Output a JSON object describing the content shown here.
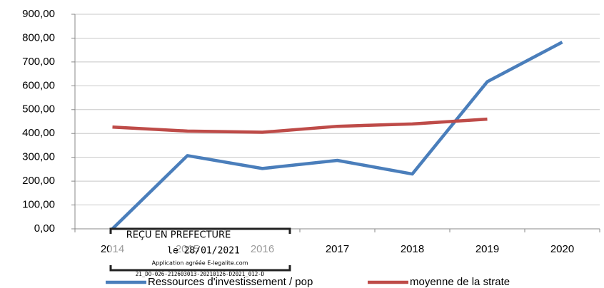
{
  "chart_data": {
    "type": "line",
    "categories": [
      "2014",
      "2015",
      "2016",
      "2017",
      "2018",
      "2019",
      "2020"
    ],
    "series": [
      {
        "name": "Ressources d'investissement / pop",
        "color": "#4a7ebb",
        "values": [
          0,
          307,
          253,
          287,
          230,
          617,
          783
        ]
      },
      {
        "name": "moyenne de la strate",
        "color": "#be4b48",
        "values": [
          427,
          410,
          405,
          430,
          440,
          460,
          null
        ]
      }
    ],
    "ylim": [
      0,
      900
    ],
    "yticks": [
      {
        "value": 0,
        "label": "0,00"
      },
      {
        "value": 100,
        "label": "100,00"
      },
      {
        "value": 200,
        "label": "200,00"
      },
      {
        "value": 300,
        "label": "300,00"
      },
      {
        "value": 400,
        "label": "400,00"
      },
      {
        "value": 500,
        "label": "500,00"
      },
      {
        "value": 600,
        "label": "600,00"
      },
      {
        "value": 700,
        "label": "700,00"
      },
      {
        "value": 800,
        "label": "800,00"
      },
      {
        "value": 900,
        "label": "900,00"
      }
    ],
    "grid": true
  },
  "stamp": {
    "line1": "REÇU EN PREFECTURE",
    "line2": "le 28/01/2021",
    "line3": "Application agréée E-legalite.com",
    "line4": "21_DO-026-212603013-20210126-D2021_012-D"
  }
}
